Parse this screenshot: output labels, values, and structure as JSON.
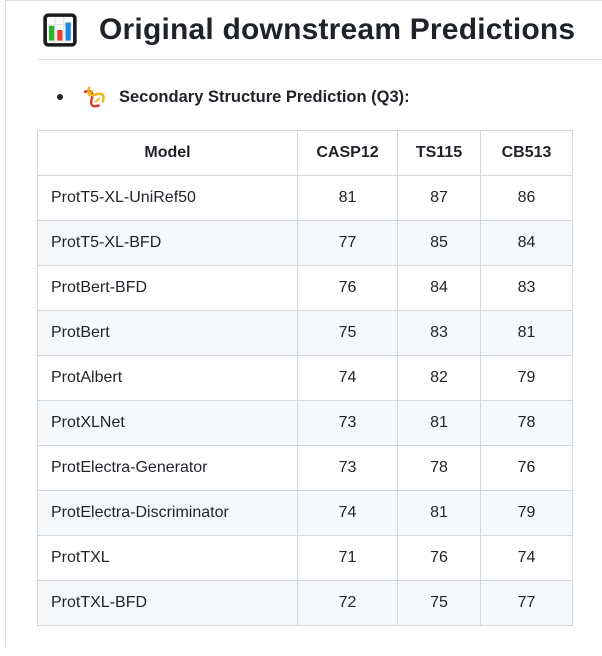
{
  "heading": {
    "icon": "bar-chart",
    "icon_glyph": "📊",
    "text": "Original downstream Predictions"
  },
  "list": {
    "items": [
      {
        "icon": "dna",
        "icon_glyph": "🧬",
        "text": "Secondary Structure Prediction (Q3):"
      }
    ]
  },
  "table": {
    "columns": [
      "Model",
      "CASP12",
      "TS115",
      "CB513"
    ],
    "rows": [
      {
        "model": "ProtT5-XL-UniRef50",
        "casp12": "81",
        "ts115": "87",
        "cb513": "86"
      },
      {
        "model": "ProtT5-XL-BFD",
        "casp12": "77",
        "ts115": "85",
        "cb513": "84"
      },
      {
        "model": "ProtBert-BFD",
        "casp12": "76",
        "ts115": "84",
        "cb513": "83"
      },
      {
        "model": "ProtBert",
        "casp12": "75",
        "ts115": "83",
        "cb513": "81"
      },
      {
        "model": "ProtAlbert",
        "casp12": "74",
        "ts115": "82",
        "cb513": "79"
      },
      {
        "model": "ProtXLNet",
        "casp12": "73",
        "ts115": "81",
        "cb513": "78"
      },
      {
        "model": "ProtElectra-Generator",
        "casp12": "73",
        "ts115": "78",
        "cb513": "76"
      },
      {
        "model": "ProtElectra-Discriminator",
        "casp12": "74",
        "ts115": "81",
        "cb513": "79"
      },
      {
        "model": "ProtTXL",
        "casp12": "71",
        "ts115": "76",
        "cb513": "74"
      },
      {
        "model": "ProtTXL-BFD",
        "casp12": "72",
        "ts115": "75",
        "cb513": "77"
      }
    ]
  },
  "colors": {
    "text": "#1f2328",
    "table_border": "#d0d7de",
    "row_alt_bg": "#f6f8fa",
    "divider": "#d8dee4",
    "icon_green": "#2db52d",
    "icon_red": "#ef3b30",
    "icon_blue": "#1e88e5",
    "dna_red": "#e03a2f",
    "dna_yellow": "#f3b519"
  }
}
